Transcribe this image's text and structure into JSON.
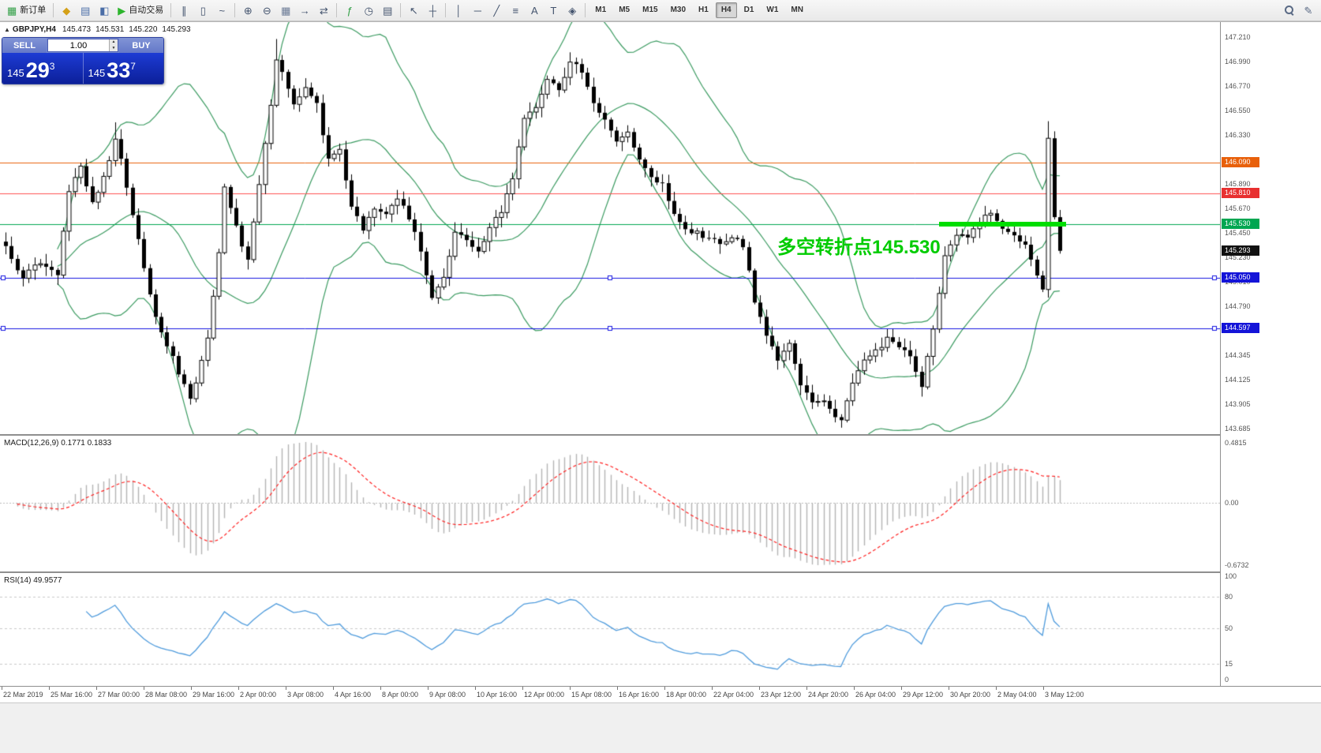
{
  "toolbar": {
    "items": [
      {
        "t": "btn",
        "name": "new-order-button",
        "icon": "new-order-icon",
        "glyph": "▦",
        "c": "#2f9e44",
        "label": "新订单"
      },
      {
        "t": "sep"
      },
      {
        "t": "btn",
        "name": "market-watch-button",
        "icon": "market-watch-icon",
        "glyph": "◆",
        "c": "#d4a017"
      },
      {
        "t": "btn",
        "name": "data-window-button",
        "icon": "data-window-icon",
        "glyph": "▤",
        "c": "#4a6da7"
      },
      {
        "t": "btn",
        "name": "navigator-button",
        "icon": "navigator-icon",
        "glyph": "◧",
        "c": "#4a6da7"
      },
      {
        "t": "btn",
        "name": "autotrading-button",
        "icon": "autotrading-play-icon",
        "glyph": "▶",
        "c": "#2db52d",
        "label": "自动交易"
      },
      {
        "t": "sep"
      },
      {
        "t": "btn",
        "name": "bar-chart-button",
        "icon": "bar-chart-icon",
        "glyph": "∥",
        "c": "#44546e"
      },
      {
        "t": "btn",
        "name": "candle-chart-button",
        "icon": "candle-chart-icon",
        "glyph": "▯",
        "c": "#44546e"
      },
      {
        "t": "btn",
        "name": "line-chart-button",
        "icon": "line-chart-icon",
        "glyph": "~",
        "c": "#44546e"
      },
      {
        "t": "sep"
      },
      {
        "t": "btn",
        "name": "zoom-in-button",
        "icon": "zoom-in-icon",
        "glyph": "⊕",
        "c": "#44546e"
      },
      {
        "t": "btn",
        "name": "zoom-out-button",
        "icon": "zoom-out-icon",
        "glyph": "⊖",
        "c": "#44546e"
      },
      {
        "t": "btn",
        "name": "tile-windows-button",
        "icon": "tile-windows-icon",
        "glyph": "▦",
        "c": "#6a7a95"
      },
      {
        "t": "btn",
        "name": "auto-scroll-button",
        "icon": "auto-scroll-icon",
        "glyph": "→",
        "c": "#44546e"
      },
      {
        "t": "btn",
        "name": "chart-shift-button",
        "icon": "chart-shift-icon",
        "glyph": "⇄",
        "c": "#44546e"
      },
      {
        "t": "sep"
      },
      {
        "t": "btn",
        "name": "indicators-button",
        "icon": "indicators-icon",
        "glyph": "ƒ",
        "c": "#2f9e44"
      },
      {
        "t": "btn",
        "name": "periods-button",
        "icon": "clock-icon",
        "glyph": "◷",
        "c": "#44546e"
      },
      {
        "t": "btn",
        "name": "templates-button",
        "icon": "template-icon",
        "glyph": "▤",
        "c": "#44546e"
      },
      {
        "t": "sep"
      },
      {
        "t": "btn",
        "name": "cursor-button",
        "icon": "cursor-icon",
        "glyph": "↖",
        "c": "#44546e"
      },
      {
        "t": "btn",
        "name": "crosshair-button",
        "icon": "crosshair-icon",
        "glyph": "┼",
        "c": "#44546e"
      },
      {
        "t": "sep"
      },
      {
        "t": "btn",
        "name": "vertical-line-button",
        "icon": "vertical-line-icon",
        "glyph": "│",
        "c": "#44546e"
      },
      {
        "t": "btn",
        "name": "horizontal-line-button",
        "icon": "horizontal-line-icon",
        "glyph": "─",
        "c": "#44546e"
      },
      {
        "t": "btn",
        "name": "trendline-button",
        "icon": "trendline-icon",
        "glyph": "╱",
        "c": "#44546e"
      },
      {
        "t": "btn",
        "name": "fibonacci-button",
        "icon": "fibonacci-icon",
        "glyph": "≡",
        "c": "#44546e"
      },
      {
        "t": "btn",
        "name": "text-button",
        "icon": "text-icon",
        "glyph": "A",
        "c": "#44546e"
      },
      {
        "t": "btn",
        "name": "text-label-button",
        "icon": "text-label-icon",
        "glyph": "T",
        "c": "#44546e"
      },
      {
        "t": "btn",
        "name": "shapes-button",
        "icon": "shapes-icon",
        "glyph": "◈",
        "c": "#44546e"
      },
      {
        "t": "sep"
      },
      {
        "t": "tf"
      },
      {
        "t": "spacer"
      },
      {
        "t": "btn",
        "name": "search-button",
        "icon": "search-icon",
        "cls": "icon-mag"
      },
      {
        "t": "btn",
        "name": "quick-edit-button",
        "icon": "pencil-icon",
        "glyph": "✎",
        "c": "#5a6a85"
      }
    ],
    "timeframes": [
      "M1",
      "M5",
      "M15",
      "M30",
      "H1",
      "H4",
      "D1",
      "W1",
      "MN"
    ],
    "active_timeframe": "H4"
  },
  "trade_panel": {
    "sell_label": "SELL",
    "buy_label": "BUY",
    "volume": "1.00",
    "sell_price": {
      "prefix": "145",
      "big": "29",
      "sup": "3"
    },
    "buy_price": {
      "prefix": "145",
      "big": "33",
      "sup": "7"
    }
  },
  "chart": {
    "title": {
      "symbol_tf": "GBPJPY,H4",
      "o": "145.473",
      "h": "145.531",
      "l": "145.220",
      "c": "145.293"
    }
  },
  "chart_data": {
    "type": "candlestick",
    "symbol": "GBPJPY",
    "timeframe": "H4",
    "ohlc_display": {
      "open": 145.473,
      "high": 145.531,
      "low": 145.22,
      "close": 145.293
    },
    "candle_count": 184,
    "price_axis": {
      "min": 143.685,
      "max": 147.21,
      "tick": 0.22,
      "labels": [
        "147.210",
        "146.990",
        "146.770",
        "146.550",
        "146.330",
        "145.890",
        "145.670",
        "145.450",
        "145.230",
        "145.010",
        "144.790",
        "144.345",
        "144.125",
        "143.905",
        "143.685"
      ]
    },
    "time_labels": [
      "22 Mar 2019",
      "25 Mar 16:00",
      "27 Mar 00:00",
      "28 Mar 08:00",
      "29 Mar 16:00",
      "2 Apr 00:00",
      "3 Apr 08:00",
      "4 Apr 16:00",
      "8 Apr 00:00",
      "9 Apr 08:00",
      "10 Apr 16:00",
      "12 Apr 00:00",
      "15 Apr 08:00",
      "16 Apr 16:00",
      "18 Apr 00:00",
      "22 Apr 04:00",
      "23 Apr 12:00",
      "24 Apr 20:00",
      "26 Apr 04:00",
      "29 Apr 12:00",
      "30 Apr 20:00",
      "2 May 04:00",
      "3 May 12:00"
    ],
    "price_keypoints": [
      [
        0,
        145.32
      ],
      [
        3,
        145.05
      ],
      [
        6,
        145.2
      ],
      [
        9,
        145.08
      ],
      [
        11,
        145.85
      ],
      [
        13,
        146.05
      ],
      [
        15,
        145.72
      ],
      [
        17,
        145.95
      ],
      [
        19,
        146.28
      ],
      [
        20,
        146.1
      ],
      [
        22,
        145.6
      ],
      [
        24,
        145.15
      ],
      [
        26,
        144.7
      ],
      [
        28,
        144.45
      ],
      [
        30,
        144.2
      ],
      [
        32,
        143.95
      ],
      [
        33,
        144.1
      ],
      [
        35,
        144.5
      ],
      [
        37,
        145.3
      ],
      [
        38,
        145.85
      ],
      [
        40,
        145.5
      ],
      [
        42,
        145.2
      ],
      [
        44,
        145.9
      ],
      [
        46,
        146.6
      ],
      [
        47,
        147.0
      ],
      [
        48,
        146.9
      ],
      [
        50,
        146.6
      ],
      [
        52,
        146.75
      ],
      [
        54,
        146.6
      ],
      [
        56,
        146.1
      ],
      [
        58,
        146.2
      ],
      [
        60,
        145.7
      ],
      [
        62,
        145.5
      ],
      [
        64,
        145.68
      ],
      [
        66,
        145.6
      ],
      [
        68,
        145.78
      ],
      [
        70,
        145.6
      ],
      [
        72,
        145.3
      ],
      [
        74,
        144.85
      ],
      [
        76,
        145.05
      ],
      [
        78,
        145.45
      ],
      [
        80,
        145.4
      ],
      [
        82,
        145.28
      ],
      [
        84,
        145.5
      ],
      [
        86,
        145.65
      ],
      [
        88,
        145.95
      ],
      [
        90,
        146.5
      ],
      [
        92,
        146.6
      ],
      [
        94,
        146.85
      ],
      [
        96,
        146.75
      ],
      [
        98,
        147.0
      ],
      [
        100,
        146.9
      ],
      [
        102,
        146.6
      ],
      [
        104,
        146.45
      ],
      [
        106,
        146.3
      ],
      [
        108,
        146.35
      ],
      [
        110,
        146.1
      ],
      [
        112,
        145.95
      ],
      [
        114,
        145.88
      ],
      [
        116,
        145.6
      ],
      [
        118,
        145.5
      ],
      [
        120,
        145.45
      ],
      [
        122,
        145.4
      ],
      [
        124,
        145.35
      ],
      [
        126,
        145.42
      ],
      [
        128,
        145.35
      ],
      [
        130,
        144.85
      ],
      [
        132,
        144.55
      ],
      [
        134,
        144.3
      ],
      [
        136,
        144.45
      ],
      [
        138,
        144.1
      ],
      [
        140,
        143.95
      ],
      [
        142,
        143.92
      ],
      [
        144,
        143.8
      ],
      [
        145,
        143.75
      ],
      [
        147,
        144.1
      ],
      [
        149,
        144.3
      ],
      [
        151,
        144.38
      ],
      [
        153,
        144.5
      ],
      [
        155,
        144.4
      ],
      [
        157,
        144.35
      ],
      [
        159,
        144.05
      ],
      [
        161,
        144.6
      ],
      [
        163,
        145.25
      ],
      [
        165,
        145.45
      ],
      [
        167,
        145.4
      ],
      [
        169,
        145.55
      ],
      [
        171,
        145.65
      ],
      [
        173,
        145.5
      ],
      [
        175,
        145.42
      ],
      [
        177,
        145.35
      ],
      [
        179,
        145.05
      ],
      [
        180,
        144.95
      ],
      [
        181,
        146.3
      ],
      [
        182,
        145.6
      ],
      [
        183,
        145.293
      ]
    ],
    "wick_overrides": {
      "19": [
        146.45,
        null
      ],
      "47": [
        147.2,
        null
      ],
      "145": [
        null,
        143.7
      ],
      "159": [
        null,
        143.98
      ],
      "181": [
        146.46,
        null
      ]
    },
    "bollinger": {
      "period": 20,
      "deviation": 2,
      "color": "#3a9a60"
    },
    "levels": [
      {
        "price": 146.09,
        "label": "146.090",
        "line": "#e8600a",
        "badge": "#e8600a",
        "handles": false
      },
      {
        "price": 145.81,
        "label": "145.810",
        "line": "#ff5050",
        "badge": "#e83030",
        "handles": false
      },
      {
        "price": 145.53,
        "label": "145.530",
        "line": "#00a651",
        "badge": "#00a651",
        "handles": false
      },
      {
        "price": 145.293,
        "label": "145.293",
        "line": null,
        "badge": "#111111",
        "handles": false
      },
      {
        "price": 145.05,
        "label": "145.050",
        "line": "#1414e0",
        "badge": "#1414d8",
        "handles": true
      },
      {
        "price": 144.597,
        "label": "144.597",
        "line": "#1414e0",
        "badge": "#1414d8",
        "handles": true
      }
    ],
    "annotation": {
      "text": "多空转折点145.530",
      "color": "#00cc00",
      "price_ref": 145.53
    },
    "highlight_segment": {
      "price": 145.53,
      "start_index": 162,
      "end_index": 184,
      "color": "#00dd00",
      "thickness": 6
    },
    "indicators": [
      {
        "name": "MACD",
        "params": "12,26,9",
        "header": "MACD(12,26,9) 0.1771 0.1833",
        "values": [
          0.1771,
          0.1833
        ],
        "axis_labels": [
          "0.4815",
          "0.00",
          "-0.6732"
        ],
        "histogram_color": "#b4b4b4",
        "signal_color": "#ff2020"
      },
      {
        "name": "RSI",
        "params": "14",
        "header": "RSI(14) 49.9577",
        "value": 49.9577,
        "axis_labels": [
          "100",
          "80",
          "50",
          "15",
          "0"
        ],
        "levels": [
          80,
          50,
          15
        ],
        "line_color": "#4f9bdc"
      }
    ]
  }
}
